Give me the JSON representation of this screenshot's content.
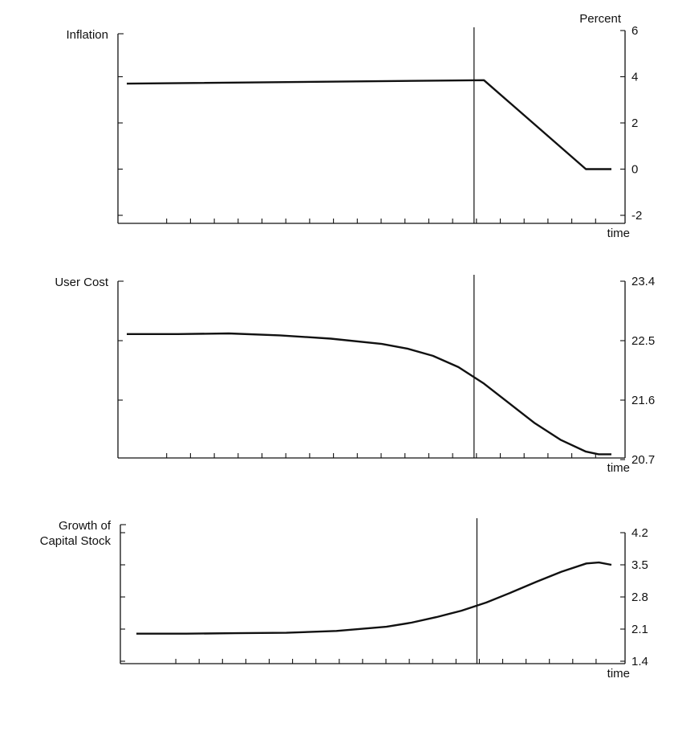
{
  "chart_data": [
    {
      "type": "line",
      "title": "",
      "ylabel": "Inflation",
      "unit_label": "Percent",
      "xlabel": "time",
      "ylim": [
        -2,
        6
      ],
      "yticks": [
        -2,
        0,
        2,
        4,
        6
      ],
      "x_range": [
        0,
        20
      ],
      "xtick_count": 20,
      "event_x": 14,
      "series": [
        {
          "x": [
            0,
            14,
            18,
            19
          ],
          "y": [
            3.7,
            3.85,
            0,
            0
          ]
        }
      ]
    },
    {
      "type": "line",
      "title": "",
      "ylabel": "User Cost",
      "xlabel": "time",
      "ylim": [
        20.7,
        23.4
      ],
      "yticks": [
        20.7,
        21.6,
        22.5,
        23.4
      ],
      "x_range": [
        0,
        20
      ],
      "xtick_count": 20,
      "event_x": 14,
      "series": [
        {
          "x": [
            0,
            2,
            4,
            6,
            8,
            10,
            11,
            12,
            13,
            14,
            15,
            16,
            17,
            18,
            18.5,
            19
          ],
          "y": [
            22.6,
            22.6,
            22.61,
            22.58,
            22.53,
            22.45,
            22.38,
            22.27,
            22.1,
            21.85,
            21.55,
            21.25,
            21.0,
            20.82,
            20.78,
            20.78
          ]
        }
      ]
    },
    {
      "type": "line",
      "title": "",
      "ylabel": "Growth of Capital Stock",
      "xlabel": "time",
      "ylim": [
        1.4,
        4.2
      ],
      "yticks": [
        1.4,
        2.1,
        2.8,
        3.5,
        4.2
      ],
      "x_range": [
        0,
        20
      ],
      "xtick_count": 20,
      "event_x": 14,
      "series": [
        {
          "x": [
            0,
            2,
            4,
            6,
            8,
            10,
            11,
            12,
            13,
            14,
            15,
            16,
            17,
            18,
            18.5,
            19
          ],
          "y": [
            2.0,
            2.0,
            2.01,
            2.02,
            2.06,
            2.15,
            2.24,
            2.36,
            2.5,
            2.68,
            2.9,
            3.13,
            3.35,
            3.53,
            3.55,
            3.5
          ]
        }
      ]
    }
  ]
}
